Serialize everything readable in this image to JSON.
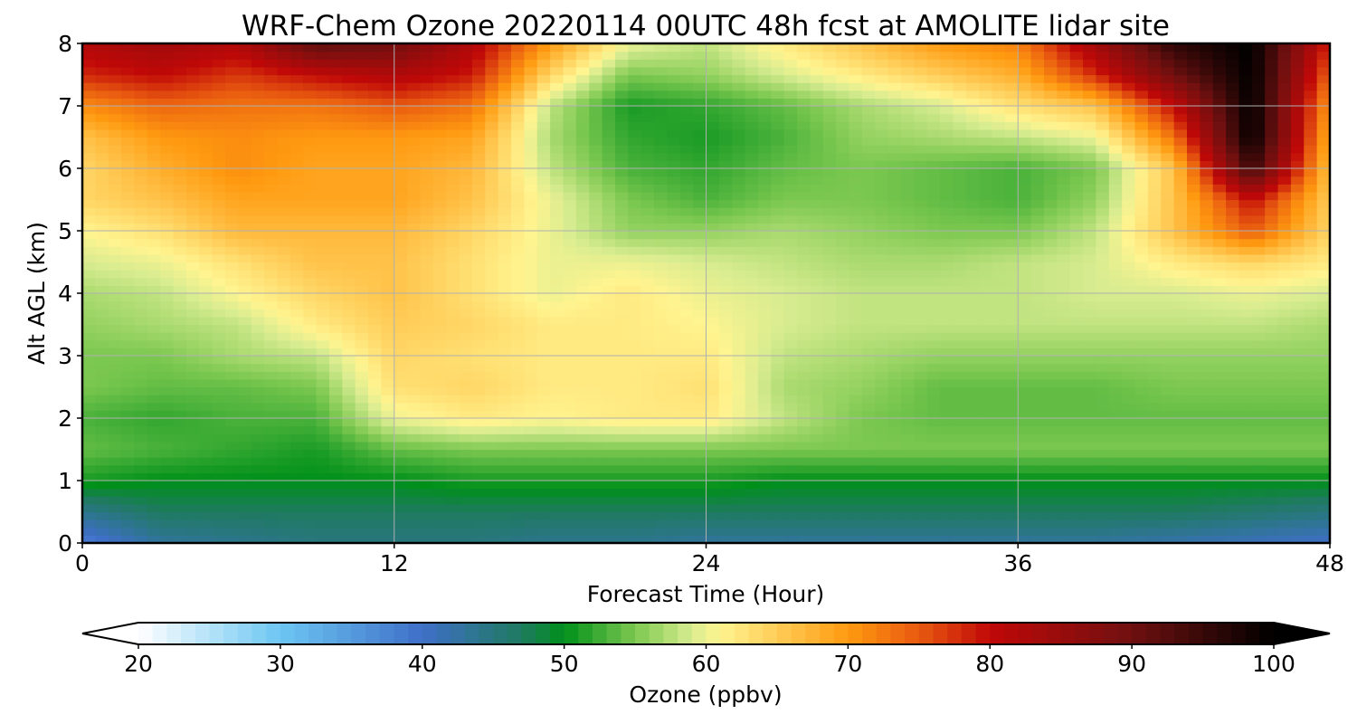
{
  "chart_data": {
    "type": "heatmap",
    "title": "WRF-Chem Ozone  20220114 00UTC 48h fcst at AMOLITE lidar site",
    "xlabel": "Forecast Time (Hour)",
    "ylabel": "Alt AGL (km)",
    "xlim": [
      0,
      48
    ],
    "ylim": [
      0,
      8
    ],
    "xticks": [
      "0",
      "12",
      "24",
      "36",
      "48"
    ],
    "yticks": [
      "0",
      "1",
      "2",
      "3",
      "4",
      "5",
      "6",
      "7",
      "8"
    ],
    "grid": true,
    "colorbar": {
      "label": "Ozone  (ppbv)",
      "range": [
        20,
        100
      ],
      "ticks": [
        "20",
        "30",
        "40",
        "50",
        "60",
        "70",
        "80",
        "90",
        "100"
      ],
      "extend": "both",
      "orientation": "horizontal",
      "colors": {
        "20": "#ffffff",
        "30": "#6cc6f2",
        "40": "#3f6fc8",
        "47": "#1f7a60",
        "50": "#00901a",
        "55": "#7cc850",
        "59": "#d8ec90",
        "61": "#fff490",
        "70": "#ff9a10",
        "75": "#e85a10",
        "80": "#c00808",
        "90": "#701010",
        "100": "#000000"
      }
    },
    "x_hours": [
      0,
      3,
      6,
      9,
      12,
      15,
      18,
      21,
      24,
      27,
      30,
      33,
      36,
      39,
      42,
      45,
      48
    ],
    "y_km": [
      0,
      0.5,
      1,
      1.5,
      2,
      2.5,
      3,
      3.5,
      4,
      4.5,
      5,
      5.5,
      6,
      6.5,
      7,
      7.5,
      8
    ],
    "ozone_ppbv": [
      [
        38,
        43,
        44,
        45,
        45,
        45,
        44,
        44,
        43,
        43,
        43,
        43,
        43,
        43,
        42,
        41,
        40
      ],
      [
        44,
        47,
        47,
        47,
        47,
        47,
        47,
        47,
        47,
        47,
        47,
        47,
        47,
        47,
        47,
        46,
        45
      ],
      [
        51,
        50,
        50,
        50,
        50,
        51,
        51,
        51,
        51,
        50,
        50,
        50,
        50,
        50,
        50,
        50,
        50
      ],
      [
        54,
        53,
        52,
        51,
        54,
        55,
        55,
        55,
        55,
        55,
        55,
        55,
        55,
        55,
        55,
        55,
        55
      ],
      [
        53,
        52,
        53,
        53,
        60,
        62,
        61,
        62,
        62,
        58,
        55,
        54,
        54,
        54,
        54,
        54,
        54
      ],
      [
        55,
        54,
        54,
        55,
        63,
        64,
        62,
        62,
        63,
        57,
        56,
        54,
        54,
        54,
        55,
        55,
        55
      ],
      [
        55,
        55,
        57,
        58,
        64,
        63,
        62,
        62,
        62,
        58,
        57,
        56,
        56,
        56,
        56,
        56,
        56
      ],
      [
        56,
        57,
        58,
        62,
        65,
        64,
        62,
        62,
        61,
        59,
        58,
        58,
        58,
        58,
        58,
        58,
        57
      ],
      [
        57,
        58,
        61,
        64,
        66,
        63,
        60,
        62,
        60,
        59,
        58,
        58,
        58,
        59,
        59,
        60,
        59
      ],
      [
        59,
        60,
        63,
        66,
        66,
        63,
        60,
        60,
        59,
        58,
        57,
        57,
        58,
        59,
        62,
        64,
        62
      ],
      [
        61,
        63,
        67,
        67,
        67,
        64,
        60,
        56,
        56,
        57,
        56,
        55,
        55,
        58,
        66,
        75,
        64
      ],
      [
        64,
        66,
        69,
        69,
        69,
        66,
        60,
        55,
        53,
        55,
        55,
        54,
        53,
        56,
        66,
        80,
        65
      ],
      [
        64,
        68,
        71,
        69,
        69,
        67,
        58,
        53,
        52,
        54,
        55,
        54,
        53,
        55,
        66,
        95,
        66
      ],
      [
        66,
        70,
        71,
        70,
        70,
        69,
        57,
        52,
        51,
        53,
        56,
        57,
        58,
        60,
        73,
        100,
        68
      ],
      [
        71,
        74,
        73,
        73,
        75,
        73,
        58,
        51,
        52,
        54,
        57,
        59,
        63,
        66,
        80,
        100,
        70
      ],
      [
        78,
        80,
        77,
        80,
        82,
        79,
        64,
        55,
        56,
        59,
        62,
        65,
        68,
        78,
        90,
        100,
        74
      ],
      [
        82,
        84,
        82,
        92,
        90,
        82,
        70,
        60,
        58,
        62,
        66,
        70,
        72,
        84,
        96,
        100,
        78
      ]
    ]
  }
}
